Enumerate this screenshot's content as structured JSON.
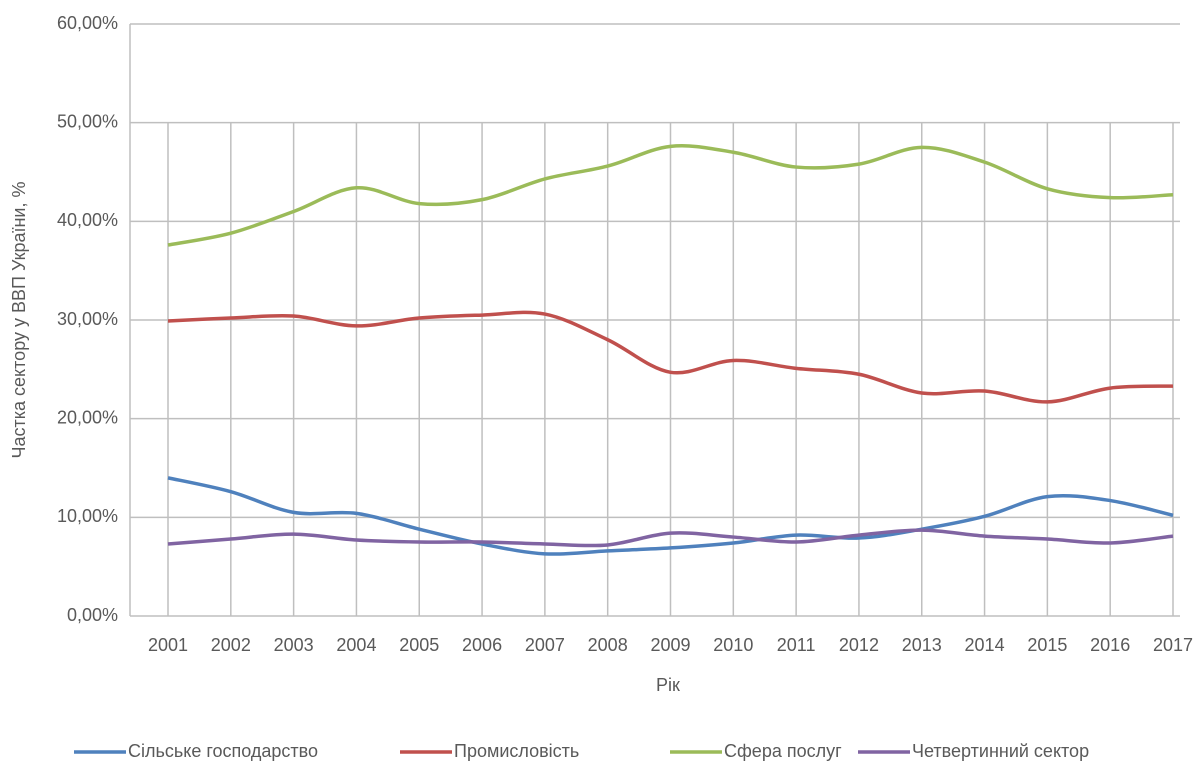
{
  "chart_data": {
    "type": "line",
    "x_label": "Рік",
    "y_label": "Частка сектору у ВВП України, %",
    "categories": [
      "2001",
      "2002",
      "2003",
      "2004",
      "2005",
      "2006",
      "2007",
      "2008",
      "2009",
      "2010",
      "2011",
      "2012",
      "2013",
      "2014",
      "2015",
      "2016",
      "2017"
    ],
    "series": [
      {
        "name": "Сільське господарство",
        "color": "#4f81bd",
        "values": [
          14.0,
          12.6,
          10.5,
          10.4,
          8.8,
          7.3,
          6.3,
          6.6,
          6.9,
          7.4,
          8.2,
          7.9,
          8.8,
          10.1,
          12.1,
          11.7,
          10.2
        ]
      },
      {
        "name": "Промисловість",
        "color": "#c0504d",
        "values": [
          29.9,
          30.2,
          30.4,
          29.4,
          30.2,
          30.5,
          30.6,
          28.0,
          24.7,
          25.9,
          25.1,
          24.5,
          22.6,
          22.8,
          21.7,
          23.1,
          23.3
        ]
      },
      {
        "name": "Сфера послуг",
        "color": "#9bbb59",
        "values": [
          37.6,
          38.8,
          41.0,
          43.4,
          41.8,
          42.2,
          44.3,
          45.6,
          47.6,
          47.0,
          45.5,
          45.8,
          47.5,
          46.0,
          43.3,
          42.4,
          42.7
        ]
      },
      {
        "name": "Четвертинний сектор",
        "color": "#8064a2",
        "values": [
          7.3,
          7.8,
          8.3,
          7.7,
          7.5,
          7.5,
          7.3,
          7.2,
          8.4,
          8.0,
          7.5,
          8.2,
          8.7,
          8.1,
          7.8,
          7.4,
          8.1
        ]
      }
    ],
    "ylim": [
      0,
      60
    ],
    "yticks": [
      {
        "value": 0,
        "label": "0,00%"
      },
      {
        "value": 10,
        "label": "10,00%"
      },
      {
        "value": 20,
        "label": "20,00%"
      },
      {
        "value": 30,
        "label": "30,00%"
      },
      {
        "value": 40,
        "label": "40,00%"
      },
      {
        "value": 50,
        "label": "50,00%"
      },
      {
        "value": 60,
        "label": "60,00%"
      }
    ],
    "grid": true,
    "smooth": true,
    "legend": "bottom"
  }
}
